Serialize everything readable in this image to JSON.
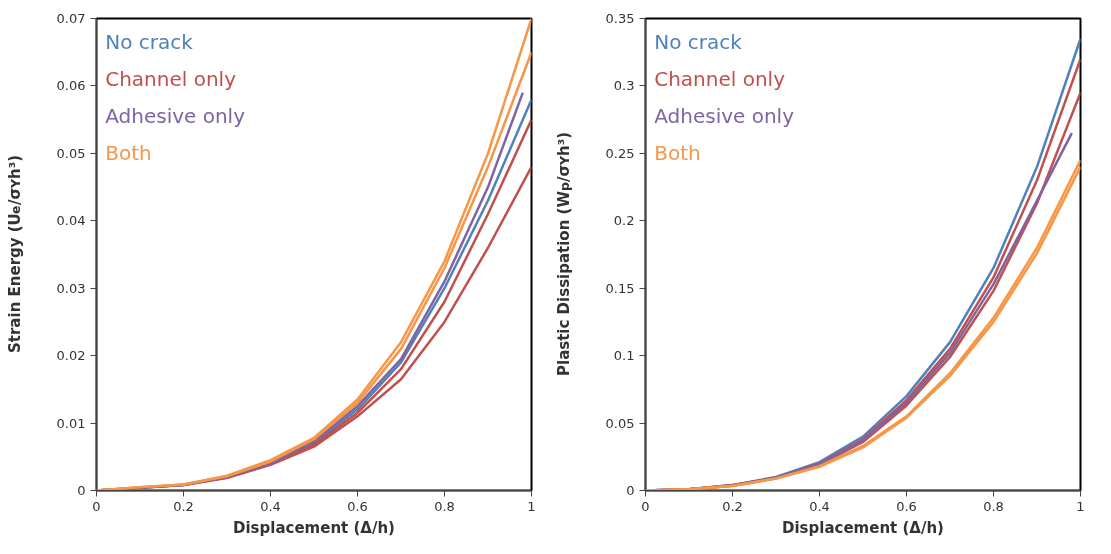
{
  "chart_data": [
    {
      "type": "line",
      "xlabel": "Displacement (Δ/h)",
      "ylabel": "Strain Energy (U$_{e}$/σ$_{Y}$h³)",
      "xlim": [
        0,
        1
      ],
      "ylim": [
        0,
        0.07
      ],
      "xticks": [
        0,
        0.2,
        0.4,
        0.6,
        0.8,
        1
      ],
      "yticks": [
        0,
        0.01,
        0.02,
        0.03,
        0.04,
        0.05,
        0.06,
        0.07
      ],
      "grid": false,
      "legend": "top left",
      "marker": "none",
      "line_style": "solid",
      "series": [
        {
          "name": "No crack",
          "color": "#4f81bd",
          "x": [
            0.4,
            0.5,
            0.6,
            0.7,
            0.8,
            0.9,
            1.0
          ],
          "values": [
            0.004,
            0.007,
            0.012,
            0.019,
            0.03,
            0.043,
            0.058
          ]
        },
        {
          "name": "Channel only",
          "color": "#c0504d",
          "x": [
            0,
            0.1,
            0.2,
            0.3,
            0.4,
            0.5,
            0.6,
            0.7,
            0.8,
            0.9,
            1.0
          ],
          "values": [
            0,
            0.0004,
            0.0008,
            0.0019,
            0.0039,
            0.0068,
            0.0115,
            0.018,
            0.028,
            0.041,
            0.055
          ]
        },
        {
          "color": "#c0504d",
          "x": [
            0,
            0.1,
            0.2,
            0.3,
            0.4,
            0.5,
            0.6,
            0.7,
            0.8,
            0.9,
            1.0
          ],
          "values": [
            0,
            0.0004,
            0.0008,
            0.0019,
            0.0038,
            0.0065,
            0.011,
            0.0165,
            0.025,
            0.036,
            0.048
          ]
        },
        {
          "name": "Adhesive only",
          "color": "#8064a2",
          "x": [
            0,
            0.1,
            0.2,
            0.3,
            0.4,
            0.5,
            0.6,
            0.7,
            0.8,
            0.9,
            0.98
          ],
          "values": [
            0,
            0.0004,
            0.0008,
            0.002,
            0.004,
            0.0073,
            0.0125,
            0.0195,
            0.031,
            0.045,
            0.059
          ]
        },
        {
          "name": "Both",
          "color": "#f79646",
          "x": [
            0,
            0.1,
            0.2,
            0.3,
            0.4,
            0.5,
            0.6,
            0.7,
            0.8,
            0.9,
            1.0
          ],
          "values": [
            0,
            0.0005,
            0.0009,
            0.0022,
            0.0045,
            0.0078,
            0.0135,
            0.022,
            0.034,
            0.05,
            0.07
          ]
        },
        {
          "color": "#f79646",
          "x": [
            0,
            0.1,
            0.2,
            0.3,
            0.4,
            0.5,
            0.6,
            0.7,
            0.8,
            0.9,
            1.0
          ],
          "values": [
            0,
            0.0005,
            0.0009,
            0.0021,
            0.0043,
            0.0076,
            0.013,
            0.021,
            0.033,
            0.048,
            0.065
          ]
        }
      ]
    },
    {
      "type": "line",
      "xlabel": "Displacement (Δ/h)",
      "ylabel": "Plastic Dissipation (W$_{p}$/σ$_{Y}$h³)",
      "xlim": [
        0,
        1
      ],
      "ylim": [
        0,
        0.35
      ],
      "xticks": [
        0,
        0.2,
        0.4,
        0.6,
        0.8,
        1
      ],
      "yticks": [
        0,
        0.05,
        0.1,
        0.15,
        0.2,
        0.25,
        0.3,
        0.35
      ],
      "grid": false,
      "legend": "top left",
      "marker": "none",
      "line_style": "solid",
      "series": [
        {
          "name": "No crack",
          "color": "#4f81bd",
          "x": [
            0,
            0.1,
            0.2,
            0.3,
            0.4,
            0.5,
            0.6,
            0.7,
            0.8,
            0.9,
            1.0
          ],
          "values": [
            0,
            0.001,
            0.004,
            0.01,
            0.021,
            0.04,
            0.07,
            0.11,
            0.165,
            0.24,
            0.335
          ]
        },
        {
          "name": "Channel only",
          "color": "#c0504d",
          "x": [
            0,
            0.1,
            0.2,
            0.3,
            0.4,
            0.5,
            0.6,
            0.7,
            0.8,
            0.9,
            1.0
          ],
          "values": [
            0,
            0.001,
            0.004,
            0.0095,
            0.02,
            0.038,
            0.067,
            0.105,
            0.158,
            0.23,
            0.32
          ]
        },
        {
          "color": "#c0504d",
          "x": [
            0,
            0.1,
            0.2,
            0.3,
            0.4,
            0.5,
            0.6,
            0.7,
            0.8,
            0.9,
            1.0
          ],
          "values": [
            0,
            0.001,
            0.0035,
            0.009,
            0.019,
            0.036,
            0.063,
            0.099,
            0.148,
            0.213,
            0.295
          ]
        },
        {
          "name": "Adhesive only",
          "color": "#8064a2",
          "x": [
            0,
            0.1,
            0.2,
            0.3,
            0.4,
            0.5,
            0.6,
            0.7,
            0.8,
            0.9,
            0.98
          ],
          "values": [
            0,
            0.001,
            0.0037,
            0.0093,
            0.0195,
            0.037,
            0.065,
            0.102,
            0.153,
            0.215,
            0.265
          ]
        },
        {
          "name": "Both",
          "color": "#f79646",
          "x": [
            0,
            0.1,
            0.2,
            0.3,
            0.4,
            0.5,
            0.6,
            0.7,
            0.8,
            0.9,
            1.0
          ],
          "values": [
            0,
            0.001,
            0.0035,
            0.009,
            0.018,
            0.033,
            0.055,
            0.087,
            0.128,
            0.18,
            0.245
          ]
        },
        {
          "color": "#f79646",
          "x": [
            0,
            0.1,
            0.2,
            0.3,
            0.4,
            0.5,
            0.6,
            0.7,
            0.8,
            0.9,
            1.0
          ],
          "values": [
            0,
            0.001,
            0.0034,
            0.0088,
            0.0175,
            0.032,
            0.054,
            0.085,
            0.125,
            0.176,
            0.24
          ]
        }
      ]
    }
  ]
}
